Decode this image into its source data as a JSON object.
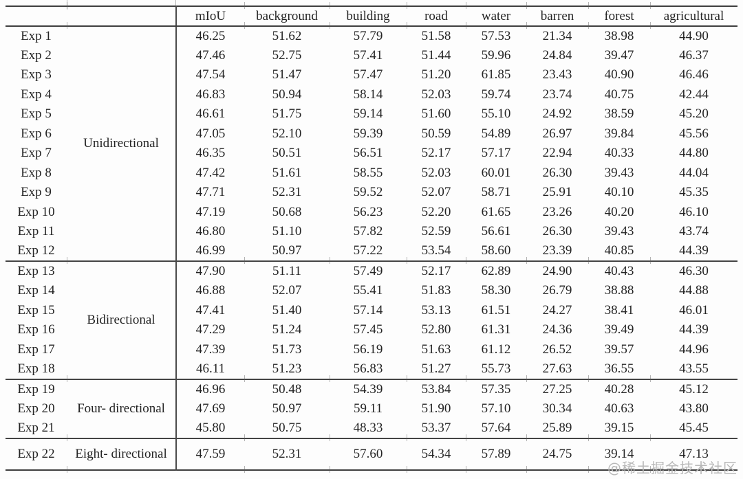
{
  "table": {
    "columns": [
      "",
      "",
      "mIoU",
      "background",
      "building",
      "road",
      "water",
      "barren",
      "forest",
      "agricultural"
    ],
    "groups": [
      {
        "label": [
          "Unidirectional"
        ],
        "rows": [
          {
            "exp": "Exp 1",
            "values": [
              "46.25",
              "51.62",
              "57.79",
              "51.58",
              "57.53",
              "21.34",
              "38.98",
              "44.90"
            ]
          },
          {
            "exp": "Exp 2",
            "values": [
              "47.46",
              "52.75",
              "57.41",
              "51.44",
              "59.96",
              "24.84",
              "39.47",
              "46.37"
            ]
          },
          {
            "exp": "Exp 3",
            "values": [
              "47.54",
              "51.47",
              "57.47",
              "51.20",
              "61.85",
              "23.43",
              "40.90",
              "46.46"
            ]
          },
          {
            "exp": "Exp 4",
            "values": [
              "46.83",
              "50.94",
              "58.14",
              "52.03",
              "59.74",
              "23.74",
              "40.75",
              "42.44"
            ]
          },
          {
            "exp": "Exp 5",
            "values": [
              "46.61",
              "51.75",
              "59.14",
              "51.60",
              "55.10",
              "24.92",
              "38.59",
              "45.20"
            ]
          },
          {
            "exp": "Exp 6",
            "values": [
              "47.05",
              "52.10",
              "59.39",
              "50.59",
              "54.89",
              "26.97",
              "39.84",
              "45.56"
            ]
          },
          {
            "exp": "Exp 7",
            "values": [
              "46.35",
              "50.51",
              "56.51",
              "52.17",
              "57.17",
              "22.94",
              "40.33",
              "44.80"
            ]
          },
          {
            "exp": "Exp 8",
            "values": [
              "47.42",
              "51.61",
              "58.55",
              "52.03",
              "60.01",
              "26.30",
              "39.43",
              "44.04"
            ]
          },
          {
            "exp": "Exp 9",
            "values": [
              "47.71",
              "52.31",
              "59.52",
              "52.07",
              "58.71",
              "25.91",
              "40.10",
              "45.35"
            ]
          },
          {
            "exp": "Exp 10",
            "values": [
              "47.19",
              "50.68",
              "56.23",
              "52.20",
              "61.65",
              "23.26",
              "40.20",
              "46.10"
            ]
          },
          {
            "exp": "Exp 11",
            "values": [
              "46.80",
              "51.10",
              "57.82",
              "52.59",
              "56.61",
              "26.30",
              "39.43",
              "43.74"
            ]
          },
          {
            "exp": "Exp 12",
            "values": [
              "46.99",
              "50.97",
              "57.22",
              "53.54",
              "58.60",
              "23.39",
              "40.85",
              "44.39"
            ]
          }
        ]
      },
      {
        "label": [
          "Bidirectional"
        ],
        "rows": [
          {
            "exp": "Exp 13",
            "values": [
              "47.90",
              "51.11",
              "57.49",
              "52.17",
              "62.89",
              "24.90",
              "40.43",
              "46.30"
            ]
          },
          {
            "exp": "Exp 14",
            "values": [
              "46.88",
              "52.07",
              "55.41",
              "51.83",
              "58.30",
              "26.79",
              "38.88",
              "44.88"
            ]
          },
          {
            "exp": "Exp 15",
            "values": [
              "47.41",
              "51.40",
              "57.14",
              "53.13",
              "61.51",
              "24.27",
              "38.41",
              "46.01"
            ]
          },
          {
            "exp": "Exp 16",
            "values": [
              "47.29",
              "51.24",
              "57.45",
              "52.80",
              "61.31",
              "24.36",
              "39.49",
              "44.39"
            ]
          },
          {
            "exp": "Exp 17",
            "values": [
              "47.39",
              "51.73",
              "56.19",
              "51.63",
              "61.12",
              "26.52",
              "39.57",
              "44.96"
            ]
          },
          {
            "exp": "Exp 18",
            "values": [
              "46.11",
              "51.23",
              "56.83",
              "51.27",
              "55.73",
              "27.63",
              "36.55",
              "43.55"
            ]
          }
        ]
      },
      {
        "label": [
          "Four-",
          "directional"
        ],
        "rows": [
          {
            "exp": "Exp 19",
            "values": [
              "46.96",
              "50.48",
              "54.39",
              "53.84",
              "57.35",
              "27.25",
              "40.28",
              "45.12"
            ]
          },
          {
            "exp": "Exp 20",
            "values": [
              "47.69",
              "50.97",
              "59.11",
              "51.90",
              "57.10",
              "30.34",
              "40.63",
              "43.80"
            ]
          },
          {
            "exp": "Exp 21",
            "values": [
              "45.80",
              "50.75",
              "48.33",
              "53.37",
              "57.64",
              "25.89",
              "39.15",
              "45.45"
            ]
          }
        ]
      },
      {
        "label": [
          "Eight-",
          "directional"
        ],
        "rows": [
          {
            "exp": "Exp 22",
            "values": [
              "47.59",
              "52.31",
              "57.60",
              "54.34",
              "57.89",
              "24.75",
              "39.14",
              "47.13"
            ]
          }
        ]
      }
    ]
  },
  "watermark": {
    "text": "@稀土掘金技术社区"
  }
}
